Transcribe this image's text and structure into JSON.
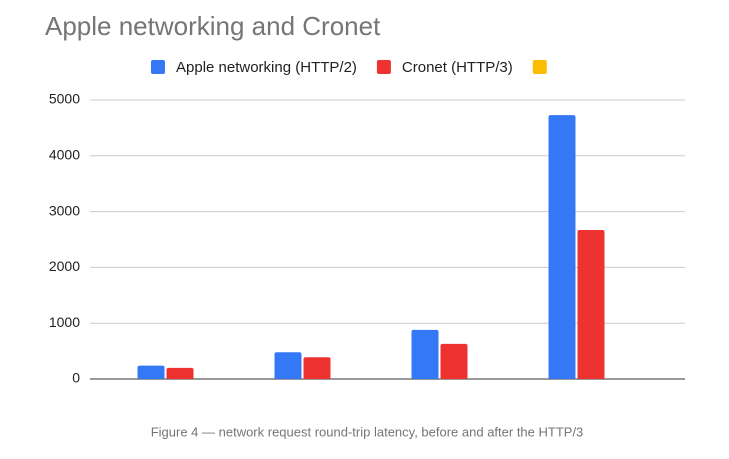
{
  "chart_data": {
    "type": "bar",
    "title": "Apple networking and Cronet",
    "categories": [
      null,
      null,
      null,
      null
    ],
    "series": [
      {
        "name": "Apple networking (HTTP/2)",
        "color": "#3478f6",
        "values": [
          240,
          480,
          880,
          4730
        ]
      },
      {
        "name": "Cronet (HTTP/3)",
        "color": "#ee3230",
        "values": [
          200,
          390,
          630,
          2670
        ]
      },
      {
        "color": "#fbbc04",
        "values": [
          null,
          null,
          null,
          null
        ]
      }
    ],
    "ylim": [
      0,
      5000
    ],
    "yticks": [
      0,
      1000,
      2000,
      3000,
      4000,
      5000
    ],
    "grid": true,
    "legend": "top",
    "caption": "Figure 4 — network request round-trip latency, before and after the HTTP/3"
  }
}
